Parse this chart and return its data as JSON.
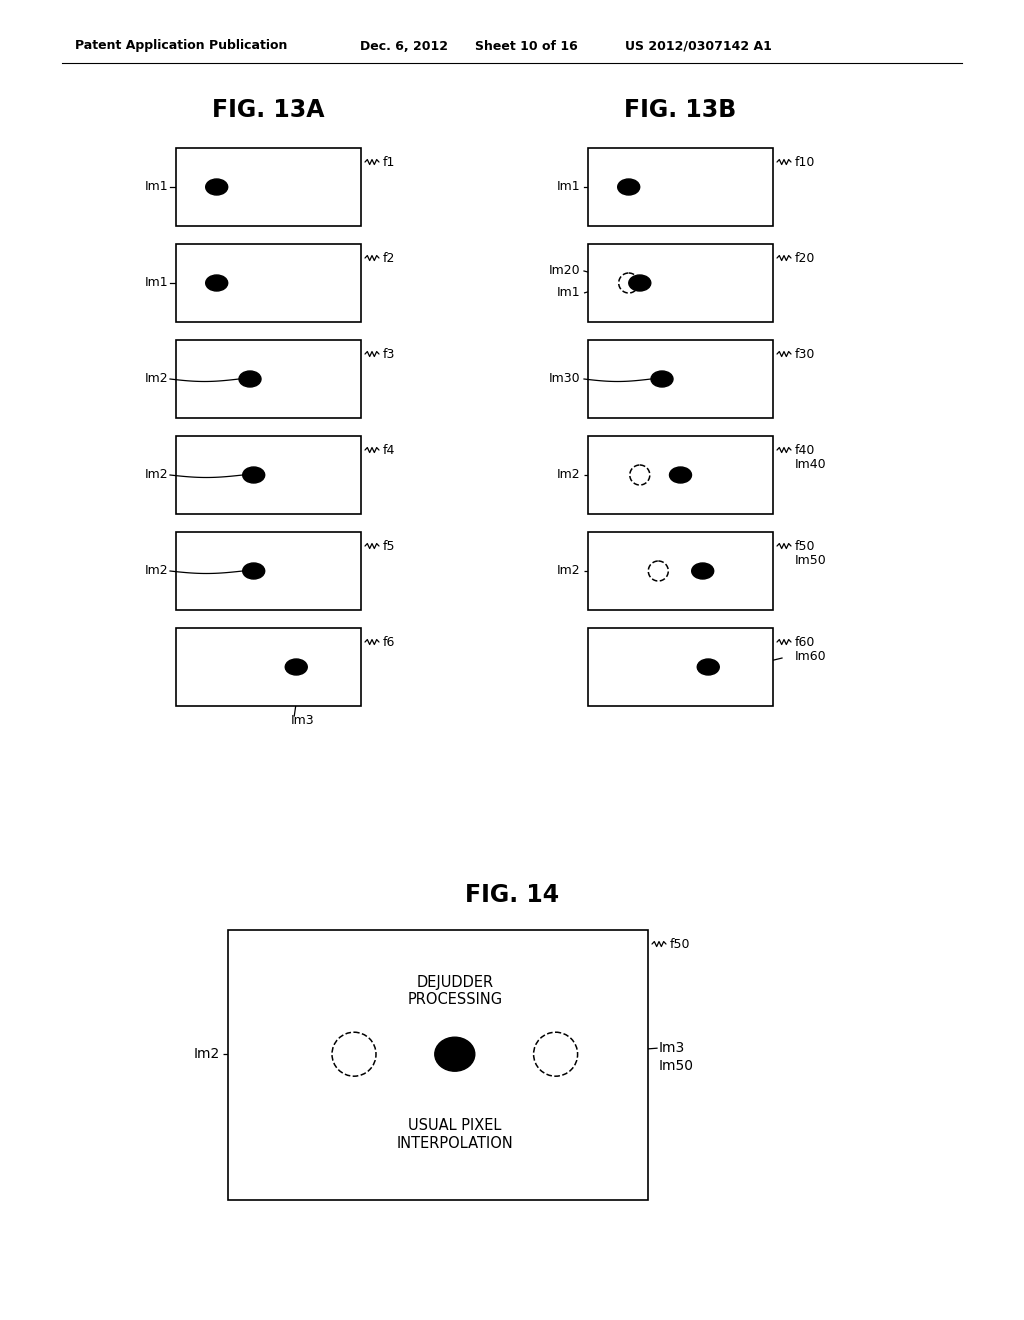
{
  "header_left": "Patent Application Publication",
  "header_mid": "Dec. 6, 2012",
  "header_sheet": "Sheet 10 of 16",
  "header_right": "US 2012/0307142 A1",
  "fig13a_title": "FIG. 13A",
  "fig13b_title": "FIG. 13B",
  "fig14_title": "FIG. 14",
  "background_color": "#ffffff"
}
